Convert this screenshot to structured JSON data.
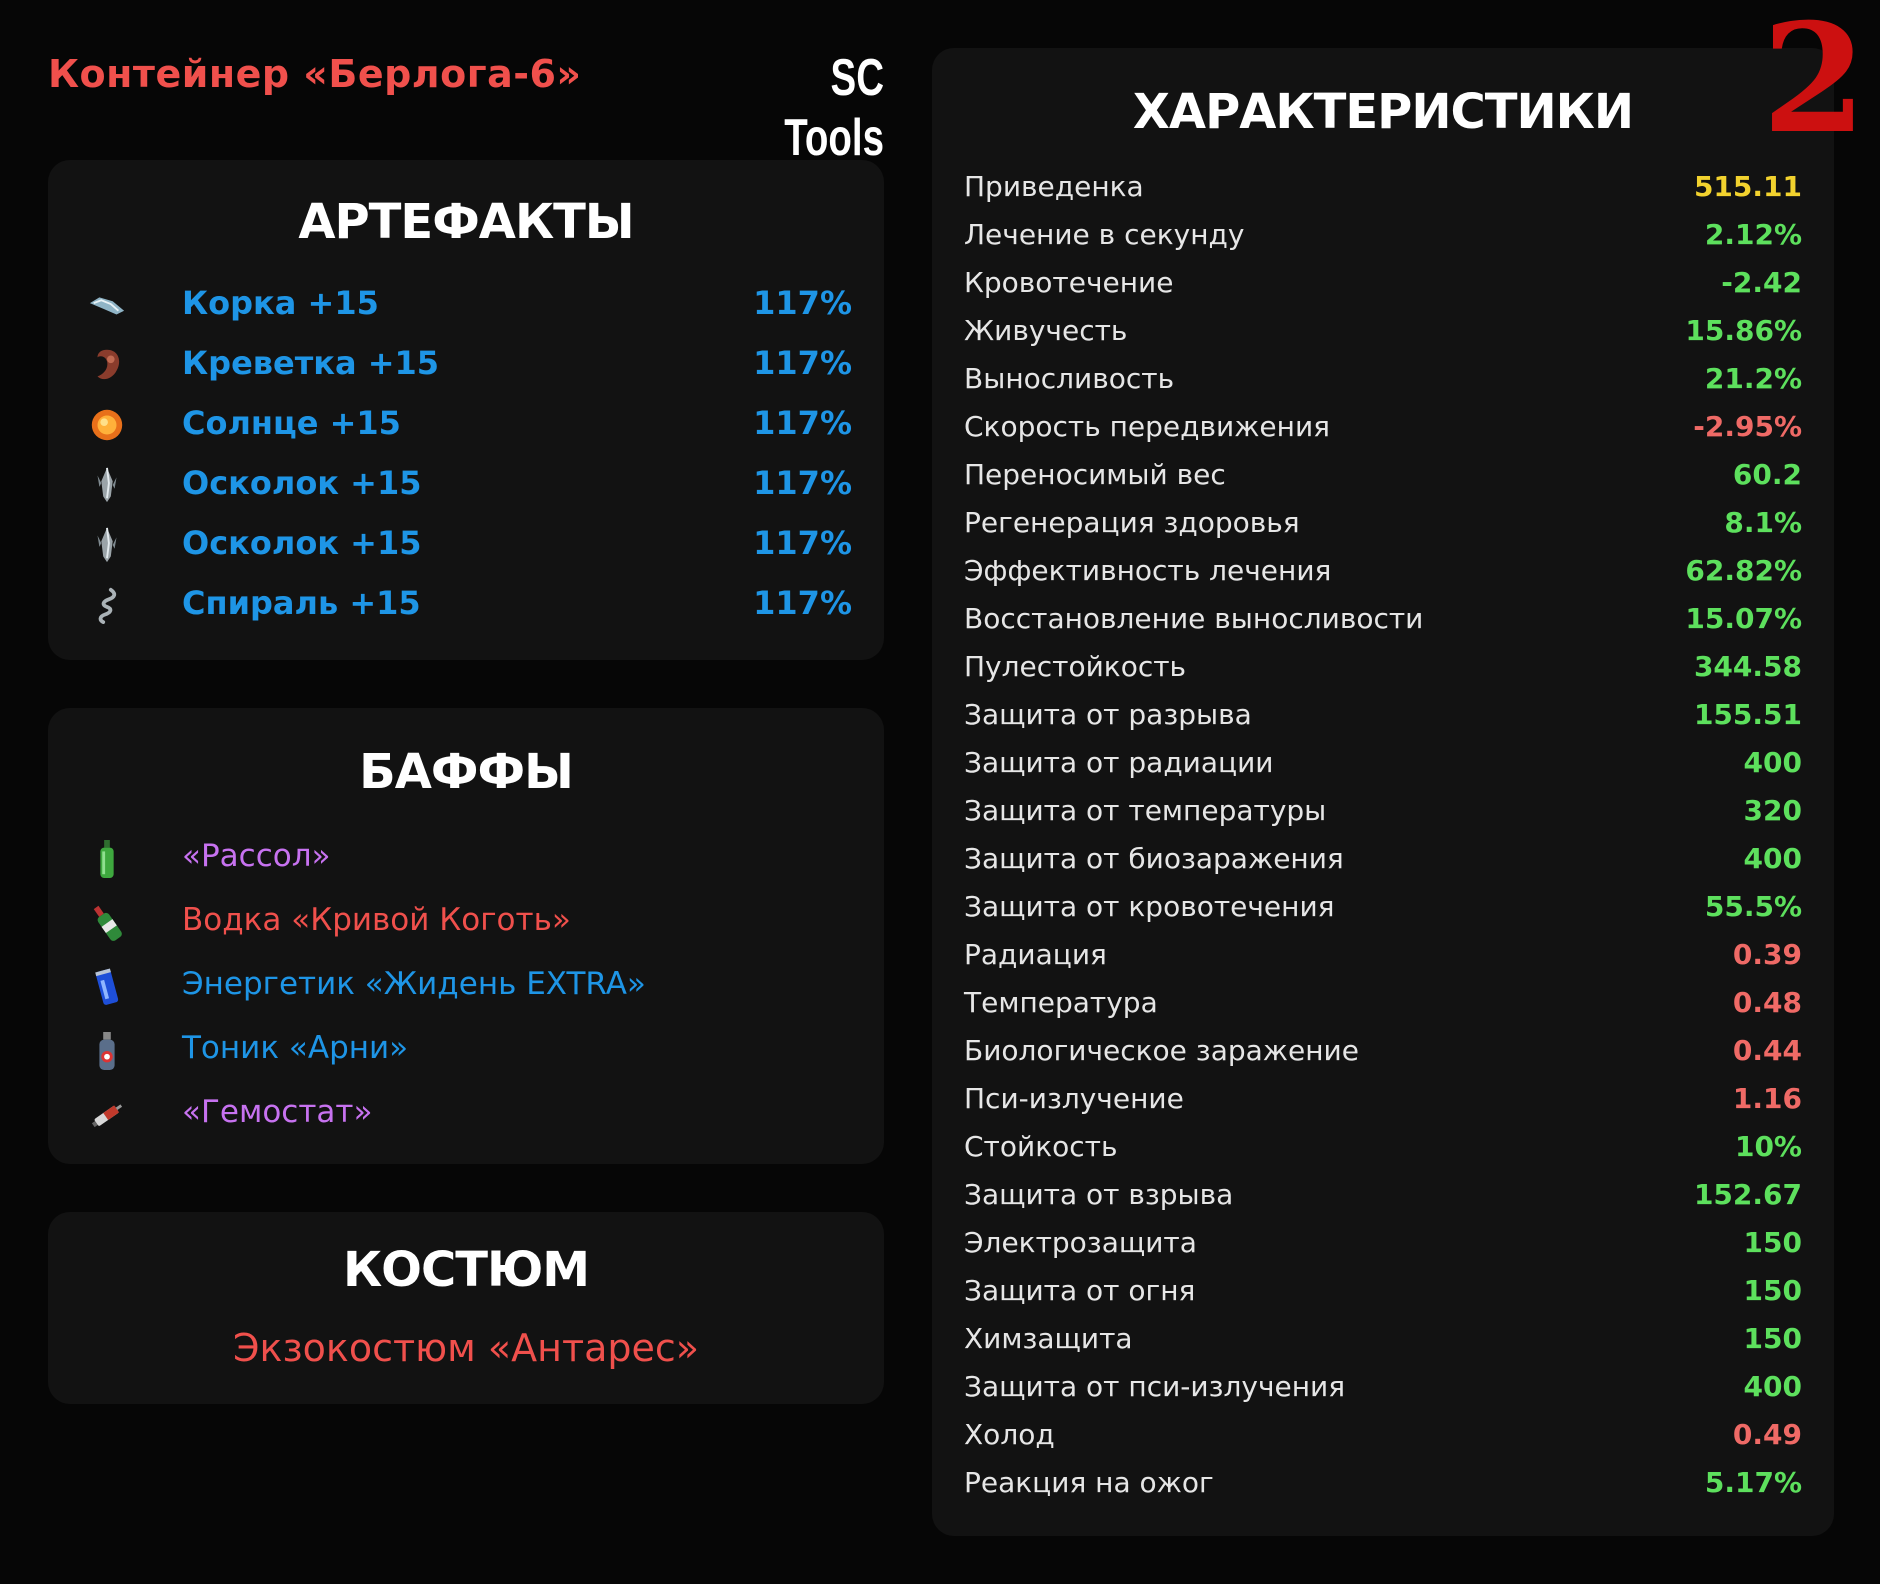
{
  "header": {
    "container_title": "Контейнер «Берлога-6»",
    "brand": "SC Tools",
    "page_number": "2"
  },
  "artifacts": {
    "title": "АРТЕФАКТЫ",
    "items": [
      {
        "name": "Корка +15",
        "percent": "117%",
        "icon": "korka-artifact-icon"
      },
      {
        "name": "Креветка +15",
        "percent": "117%",
        "icon": "krevetka-artifact-icon"
      },
      {
        "name": "Солнце +15",
        "percent": "117%",
        "icon": "solntse-artifact-icon"
      },
      {
        "name": "Осколок +15",
        "percent": "117%",
        "icon": "oskolok-artifact-icon"
      },
      {
        "name": "Осколок +15",
        "percent": "117%",
        "icon": "oskolok-artifact-icon"
      },
      {
        "name": "Спираль +15",
        "percent": "117%",
        "icon": "spiral-artifact-icon"
      }
    ]
  },
  "buffs": {
    "title": "БАФФЫ",
    "items": [
      {
        "name": "«Рассол»",
        "color": "#c772f0",
        "icon": "green-bottle-icon"
      },
      {
        "name": "Водка «Кривой Коготь»",
        "color": "#f0504c",
        "icon": "vodka-bottle-icon"
      },
      {
        "name": "Энергетик «Жидень EXTRA»",
        "color": "#1e95e6",
        "icon": "energy-can-icon"
      },
      {
        "name": "Тоник «Арни»",
        "color": "#1e95e6",
        "icon": "tonic-bottle-icon"
      },
      {
        "name": "«Гемостат»",
        "color": "#c772f0",
        "icon": "syringe-icon"
      }
    ]
  },
  "suit": {
    "title": "КОСТЮМ",
    "name": "Экзокостюм «Антарес»"
  },
  "stats": {
    "title": "ХАРАКТЕРИСТИКИ",
    "rows": [
      {
        "label": "Приведенка",
        "value": "515.11",
        "color": "#f2d22e"
      },
      {
        "label": "Лечение в секунду",
        "value": "2.12%",
        "color": "#5de05d"
      },
      {
        "label": "Кровотечение",
        "value": "-2.42",
        "color": "#5de05d"
      },
      {
        "label": "Живучесть",
        "value": "15.86%",
        "color": "#5de05d"
      },
      {
        "label": "Выносливость",
        "value": "21.2%",
        "color": "#5de05d"
      },
      {
        "label": "Скорость передвижения",
        "value": "-2.95%",
        "color": "#ef6a66"
      },
      {
        "label": "Переносимый вес",
        "value": "60.2",
        "color": "#5de05d"
      },
      {
        "label": "Регенерация здоровья",
        "value": "8.1%",
        "color": "#5de05d"
      },
      {
        "label": "Эффективность лечения",
        "value": "62.82%",
        "color": "#5de05d"
      },
      {
        "label": "Восстановление выносливости",
        "value": "15.07%",
        "color": "#5de05d"
      },
      {
        "label": "Пулестойкость",
        "value": "344.58",
        "color": "#5de05d"
      },
      {
        "label": "Защита от разрыва",
        "value": "155.51",
        "color": "#5de05d"
      },
      {
        "label": "Защита от радиации",
        "value": "400",
        "color": "#5de05d"
      },
      {
        "label": "Защита от температуры",
        "value": "320",
        "color": "#5de05d"
      },
      {
        "label": "Защита от биозаражения",
        "value": "400",
        "color": "#5de05d"
      },
      {
        "label": "Защита от кровотечения",
        "value": "55.5%",
        "color": "#5de05d"
      },
      {
        "label": "Радиация",
        "value": "0.39",
        "color": "#ef6a66"
      },
      {
        "label": "Температура",
        "value": "0.48",
        "color": "#ef6a66"
      },
      {
        "label": "Биологическое заражение",
        "value": "0.44",
        "color": "#ef6a66"
      },
      {
        "label": "Пси-излучение",
        "value": "1.16",
        "color": "#ef6a66"
      },
      {
        "label": "Стойкость",
        "value": "10%",
        "color": "#5de05d"
      },
      {
        "label": "Защита от взрыва",
        "value": "152.67",
        "color": "#5de05d"
      },
      {
        "label": "Электрозащита",
        "value": "150",
        "color": "#5de05d"
      },
      {
        "label": "Защита от огня",
        "value": "150",
        "color": "#5de05d"
      },
      {
        "label": "Химзащита",
        "value": "150",
        "color": "#5de05d"
      },
      {
        "label": "Защита от пси-излучения",
        "value": "400",
        "color": "#5de05d"
      },
      {
        "label": "Холод",
        "value": "0.49",
        "color": "#ef6a66"
      },
      {
        "label": "Реакция на ожог",
        "value": "5.17%",
        "color": "#5de05d"
      }
    ]
  }
}
